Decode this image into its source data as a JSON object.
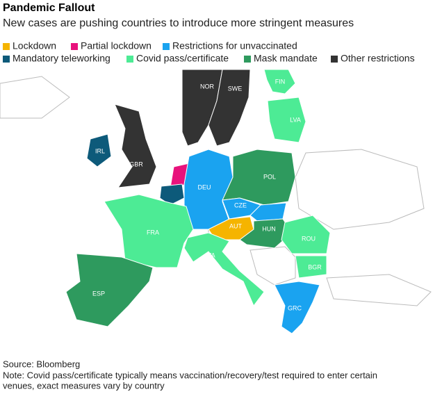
{
  "title": "Pandemic Fallout",
  "subtitle": "New cases are pushing countries to introduce more stringent measures",
  "legend": [
    {
      "label": "Lockdown",
      "color": "#f5b400"
    },
    {
      "label": "Partial lockdown",
      "color": "#e8127c"
    },
    {
      "label": "Restrictions for unvaccinated",
      "color": "#1aa3f0"
    },
    {
      "label": "Mandatory teleworking",
      "color": "#0d5a7a"
    },
    {
      "label": "Covid pass/certificate",
      "color": "#4deb95"
    },
    {
      "label": "Mask mandate",
      "color": "#2e9a5e"
    },
    {
      "label": "Other restrictions",
      "color": "#333333"
    }
  ],
  "countries": [
    {
      "label": "NOR",
      "category": 6
    },
    {
      "label": "SWE",
      "category": 6
    },
    {
      "label": "FIN",
      "category": 4
    },
    {
      "label": "LVA",
      "category": 4
    },
    {
      "label": "IRL",
      "category": 3
    },
    {
      "label": "GBR",
      "category": 6
    },
    {
      "label": null,
      "category": 1
    },
    {
      "label": null,
      "category": 3
    },
    {
      "label": "DEU",
      "category": 2
    },
    {
      "label": "POL",
      "category": 5
    },
    {
      "label": "CZE",
      "category": 2
    },
    {
      "label": null,
      "category": 2
    },
    {
      "label": "FRA",
      "category": 4
    },
    {
      "label": "AUT",
      "category": 0
    },
    {
      "label": "HUN",
      "category": 5
    },
    {
      "label": "ROU",
      "category": 4
    },
    {
      "label": "ITA",
      "category": 4
    },
    {
      "label": "BGR",
      "category": 4
    },
    {
      "label": "ESP",
      "category": 5
    },
    {
      "label": "GRC",
      "category": 2
    }
  ],
  "source": "Source: Bloomberg",
  "note": [
    "Note: Covid pass/certificate typically means vaccination/recovery/test required to enter certain",
    "venues, exact measures vary by country"
  ]
}
